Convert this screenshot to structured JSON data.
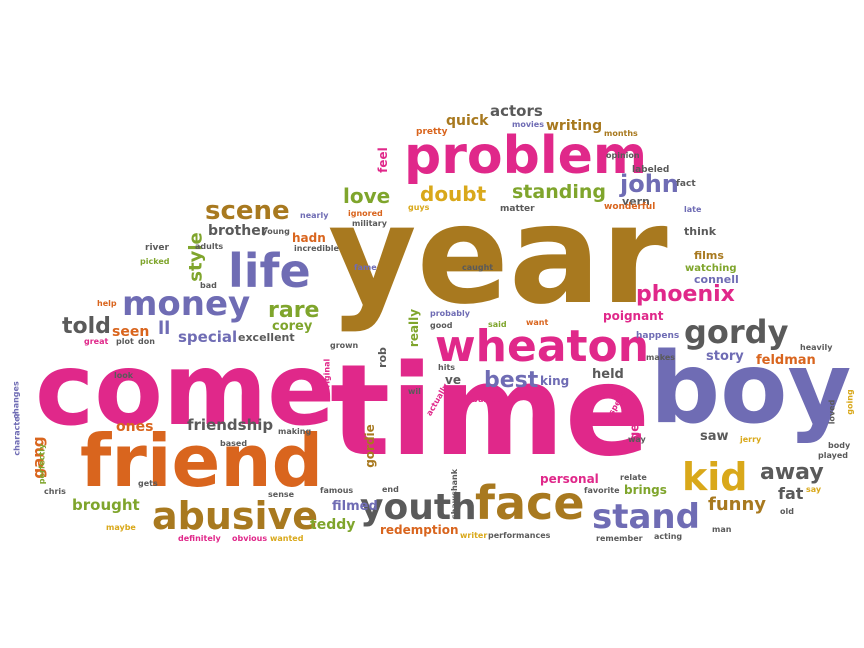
{
  "colors": {
    "pink": "#e0288a",
    "brown": "#a8791f",
    "purple": "#6f6cb4",
    "orange": "#d9651e",
    "green": "#7fa52c",
    "gray": "#5a5a5a",
    "gold": "#d9a81a"
  },
  "words": [
    {
      "text": "year",
      "color": "brown"
    },
    {
      "text": "time",
      "color": "pink"
    },
    {
      "text": "come",
      "color": "pink"
    },
    {
      "text": "boy",
      "color": "purple"
    },
    {
      "text": "friend",
      "color": "orange"
    },
    {
      "text": "problem",
      "color": "pink"
    },
    {
      "text": "wheaton",
      "color": "pink"
    },
    {
      "text": "face",
      "color": "brown"
    },
    {
      "text": "life",
      "color": "purple"
    },
    {
      "text": "money",
      "color": "purple"
    },
    {
      "text": "abusive",
      "color": "brown"
    },
    {
      "text": "youth",
      "color": "gray"
    },
    {
      "text": "stand",
      "color": "purple"
    },
    {
      "text": "kid",
      "color": "gold"
    },
    {
      "text": "gordy",
      "color": "gray"
    },
    {
      "text": "phoenix",
      "color": "pink"
    },
    {
      "text": "scene",
      "color": "brown"
    },
    {
      "text": "doubt",
      "color": "gold"
    },
    {
      "text": "standing",
      "color": "green"
    },
    {
      "text": "john",
      "color": "purple"
    },
    {
      "text": "love",
      "color": "green"
    },
    {
      "text": "rare",
      "color": "green"
    },
    {
      "text": "told",
      "color": "gray"
    },
    {
      "text": "best",
      "color": "purple"
    },
    {
      "text": "away",
      "color": "gray"
    },
    {
      "text": "funny",
      "color": "brown"
    },
    {
      "text": "fat",
      "color": "gray"
    },
    {
      "text": "friendship",
      "color": "gray"
    },
    {
      "text": "gang",
      "color": "orange"
    },
    {
      "text": "brought",
      "color": "green"
    },
    {
      "text": "ones",
      "color": "orange"
    },
    {
      "text": "actors",
      "color": "gray"
    },
    {
      "text": "writing",
      "color": "brown"
    },
    {
      "text": "quick",
      "color": "brown"
    },
    {
      "text": "style",
      "color": "green"
    },
    {
      "text": "brother",
      "color": "gray"
    },
    {
      "text": "special",
      "color": "purple"
    },
    {
      "text": "seen",
      "color": "orange"
    },
    {
      "text": "ll",
      "color": "purple"
    },
    {
      "text": "corey",
      "color": "green"
    },
    {
      "text": "excellent",
      "color": "gray"
    },
    {
      "text": "hadn",
      "color": "orange"
    },
    {
      "text": "story",
      "color": "purple"
    },
    {
      "text": "feldman",
      "color": "orange"
    },
    {
      "text": "poignant",
      "color": "pink"
    },
    {
      "text": "held",
      "color": "gray"
    },
    {
      "text": "king",
      "color": "purple"
    },
    {
      "text": "ve",
      "color": "gray"
    },
    {
      "text": "saw",
      "color": "gray"
    },
    {
      "text": "brings",
      "color": "green"
    },
    {
      "text": "personal",
      "color": "pink"
    },
    {
      "text": "filmed",
      "color": "purple"
    },
    {
      "text": "teddy",
      "color": "green"
    },
    {
      "text": "redemption",
      "color": "orange"
    },
    {
      "text": "gordie",
      "color": "brown"
    },
    {
      "text": "really",
      "color": "green"
    },
    {
      "text": "feel",
      "color": "pink"
    },
    {
      "text": "rob",
      "color": "gray"
    },
    {
      "text": "age",
      "color": "pink"
    },
    {
      "text": "connell",
      "color": "purple"
    },
    {
      "text": "films",
      "color": "brown"
    },
    {
      "text": "watching",
      "color": "green"
    },
    {
      "text": "think",
      "color": "gray"
    },
    {
      "text": "vern",
      "color": "gray"
    },
    {
      "text": "fact",
      "color": "gray"
    },
    {
      "text": "late",
      "color": "purple"
    },
    {
      "text": "wonderful",
      "color": "orange"
    },
    {
      "text": "labeled",
      "color": "gray"
    },
    {
      "text": "opinion",
      "color": "gray"
    },
    {
      "text": "months",
      "color": "brown"
    },
    {
      "text": "movies",
      "color": "purple"
    },
    {
      "text": "pretty",
      "color": "orange"
    },
    {
      "text": "matter",
      "color": "gray"
    },
    {
      "text": "guys",
      "color": "gold"
    },
    {
      "text": "nearly",
      "color": "purple"
    },
    {
      "text": "ignored",
      "color": "orange"
    },
    {
      "text": "military",
      "color": "gray"
    },
    {
      "text": "young",
      "color": "gray"
    },
    {
      "text": "incredible",
      "color": "gray"
    },
    {
      "text": "river",
      "color": "gray"
    },
    {
      "text": "adults",
      "color": "gray"
    },
    {
      "text": "picked",
      "color": "green"
    },
    {
      "text": "fame",
      "color": "purple"
    },
    {
      "text": "caught",
      "color": "gray"
    },
    {
      "text": "bad",
      "color": "gray"
    },
    {
      "text": "help",
      "color": "orange"
    },
    {
      "text": "great",
      "color": "pink"
    },
    {
      "text": "plot",
      "color": "gray"
    },
    {
      "text": "don",
      "color": "gray"
    },
    {
      "text": "probably",
      "color": "purple"
    },
    {
      "text": "good",
      "color": "gray"
    },
    {
      "text": "said",
      "color": "green"
    },
    {
      "text": "want",
      "color": "orange"
    },
    {
      "text": "happens",
      "color": "purple"
    },
    {
      "text": "makes",
      "color": "gray"
    },
    {
      "text": "heavily",
      "color": "gray"
    },
    {
      "text": "grown",
      "color": "gray"
    },
    {
      "text": "original",
      "color": "pink"
    },
    {
      "text": "look",
      "color": "gray"
    },
    {
      "text": "hits",
      "color": "gray"
    },
    {
      "text": "wil",
      "color": "gray"
    },
    {
      "text": "actually",
      "color": "pink"
    },
    {
      "text": "bullies",
      "color": "pink"
    },
    {
      "text": "respect",
      "color": "pink"
    },
    {
      "text": "way",
      "color": "gray"
    },
    {
      "text": "jerry",
      "color": "gold"
    },
    {
      "text": "loved",
      "color": "gray"
    },
    {
      "text": "going",
      "color": "gold"
    },
    {
      "text": "body",
      "color": "gray"
    },
    {
      "text": "played",
      "color": "gray"
    },
    {
      "text": "say",
      "color": "gold"
    },
    {
      "text": "old",
      "color": "gray"
    },
    {
      "text": "man",
      "color": "gray"
    },
    {
      "text": "acting",
      "color": "gray"
    },
    {
      "text": "remember",
      "color": "gray"
    },
    {
      "text": "performances",
      "color": "gray"
    },
    {
      "text": "writer",
      "color": "gold"
    },
    {
      "text": "relate",
      "color": "gray"
    },
    {
      "text": "favorite",
      "color": "gray"
    },
    {
      "text": "shawshank",
      "color": "gray"
    },
    {
      "text": "end",
      "color": "gray"
    },
    {
      "text": "famous",
      "color": "gray"
    },
    {
      "text": "sense",
      "color": "gray"
    },
    {
      "text": "wanted",
      "color": "gold"
    },
    {
      "text": "definitely",
      "color": "pink"
    },
    {
      "text": "obvious",
      "color": "pink"
    },
    {
      "text": "maybe",
      "color": "gold"
    },
    {
      "text": "gets",
      "color": "gray"
    },
    {
      "text": "based",
      "color": "gray"
    },
    {
      "text": "making",
      "color": "gray"
    },
    {
      "text": "chris",
      "color": "gray"
    },
    {
      "text": "perfectly",
      "color": "green"
    },
    {
      "text": "character",
      "color": "purple"
    },
    {
      "text": "changes",
      "color": "purple"
    }
  ]
}
